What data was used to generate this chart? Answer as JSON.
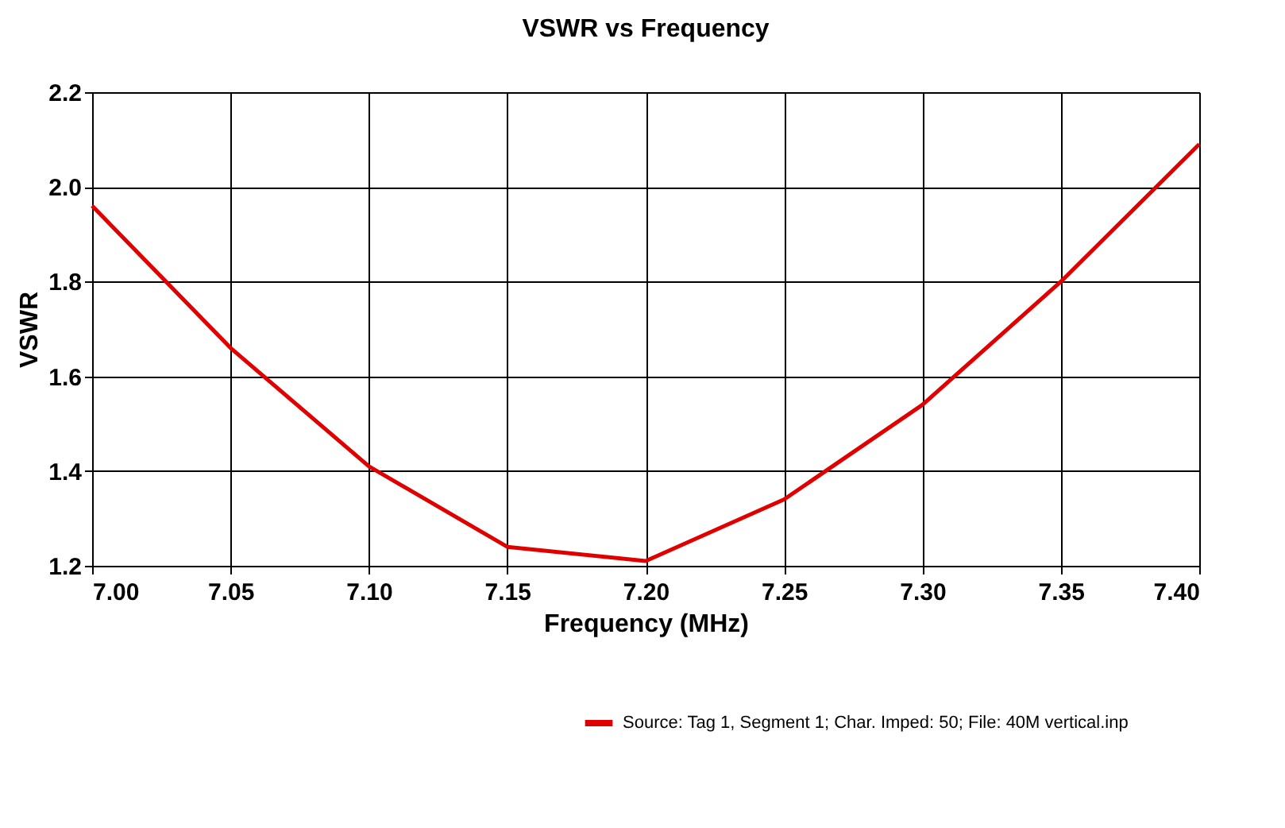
{
  "chart_data": {
    "type": "line",
    "title": "VSWR vs Frequency",
    "xlabel": "Frequency (MHz)",
    "ylabel": "VSWR",
    "x": [
      7.0,
      7.05,
      7.1,
      7.15,
      7.2,
      7.25,
      7.3,
      7.35,
      7.4
    ],
    "series": [
      {
        "name": "Source: Tag 1, Segment 1; Char. Imped: 50; File: 40M vertical.inp",
        "color": "#e00000",
        "values": [
          1.96,
          1.66,
          1.41,
          1.24,
          1.21,
          1.34,
          1.54,
          1.8,
          2.09
        ]
      }
    ],
    "xlim": [
      7.0,
      7.4
    ],
    "ylim": [
      1.2,
      2.2
    ],
    "xticks": [
      {
        "value": 7.0,
        "label": "7.00"
      },
      {
        "value": 7.05,
        "label": "7.05"
      },
      {
        "value": 7.1,
        "label": "7.10"
      },
      {
        "value": 7.15,
        "label": "7.15"
      },
      {
        "value": 7.2,
        "label": "7.20"
      },
      {
        "value": 7.25,
        "label": "7.25"
      },
      {
        "value": 7.3,
        "label": "7.30"
      },
      {
        "value": 7.35,
        "label": "7.35"
      },
      {
        "value": 7.4,
        "label": "7.40"
      }
    ],
    "yticks": [
      {
        "value": 1.2,
        "label": "1.2"
      },
      {
        "value": 1.4,
        "label": "1.4"
      },
      {
        "value": 1.6,
        "label": "1.6"
      },
      {
        "value": 1.8,
        "label": "1.8"
      },
      {
        "value": 2.0,
        "label": "2.0"
      },
      {
        "value": 2.2,
        "label": "2.2"
      }
    ],
    "grid": true,
    "legend": "bottom right",
    "marker": "none",
    "line_style": "solid"
  }
}
